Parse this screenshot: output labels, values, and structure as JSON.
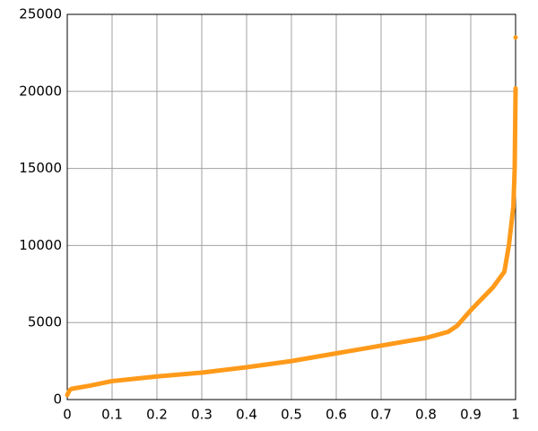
{
  "chart_data": {
    "type": "line",
    "x": [
      0,
      0.005,
      0.01,
      0.05,
      0.1,
      0.2,
      0.3,
      0.4,
      0.5,
      0.6,
      0.7,
      0.8,
      0.85,
      0.87,
      0.9,
      0.95,
      0.975,
      0.985,
      0.995,
      0.998,
      1,
      1,
      1
    ],
    "series": [
      {
        "color": "#ff9a1a",
        "values": [
          300,
          600,
          700,
          900,
          1200,
          1500,
          1750,
          2100,
          2500,
          3000,
          3500,
          4000,
          4400,
          4800,
          5800,
          7300,
          8300,
          10000,
          12500,
          15000,
          20200,
          null,
          23500
        ]
      }
    ],
    "xlim": [
      0,
      1
    ],
    "xticks": [
      0,
      0.1,
      0.2,
      0.3,
      0.4,
      0.5,
      0.6,
      0.7,
      0.8,
      0.9,
      1
    ],
    "ylim": [
      0,
      25000
    ],
    "yticks": [
      0,
      5000,
      10000,
      15000,
      20000,
      25000
    ],
    "grid": true
  }
}
